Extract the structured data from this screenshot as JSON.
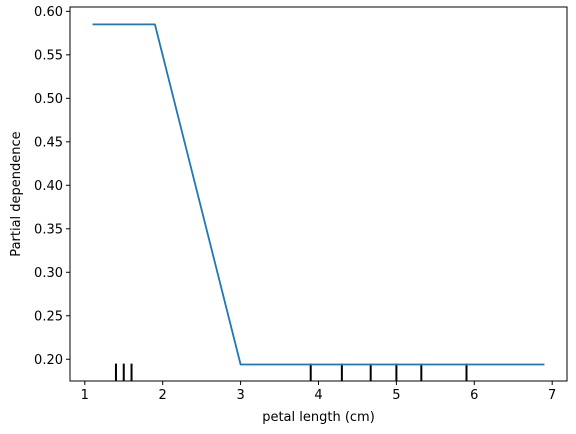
{
  "chart_data": {
    "type": "line",
    "title": "",
    "xlabel": "petal length (cm)",
    "ylabel": "Partial dependence",
    "xlim": [
      0.81,
      7.19
    ],
    "ylim": [
      0.175,
      0.605
    ],
    "xticks": [
      1,
      2,
      3,
      4,
      5,
      6,
      7
    ],
    "yticks": [
      0.2,
      0.25,
      0.3,
      0.35,
      0.4,
      0.45,
      0.5,
      0.55,
      0.6
    ],
    "ytick_labels": [
      "0.20",
      "0.25",
      "0.30",
      "0.35",
      "0.40",
      "0.45",
      "0.50",
      "0.55",
      "0.60"
    ],
    "xtick_labels": [
      "1",
      "2",
      "3",
      "4",
      "5",
      "6",
      "7"
    ],
    "grid": false,
    "legend": false,
    "series": [
      {
        "color": "#1f77b4",
        "x": [
          1.1,
          1.9,
          3.0,
          6.9
        ],
        "y": [
          0.585,
          0.585,
          0.194,
          0.194
        ]
      }
    ],
    "rug": {
      "color": "#000000",
      "x": [
        1.4,
        1.5,
        1.6,
        3.9,
        4.3,
        4.67,
        5.0,
        5.32,
        5.9
      ],
      "y_range": [
        0.175,
        0.195
      ]
    }
  }
}
